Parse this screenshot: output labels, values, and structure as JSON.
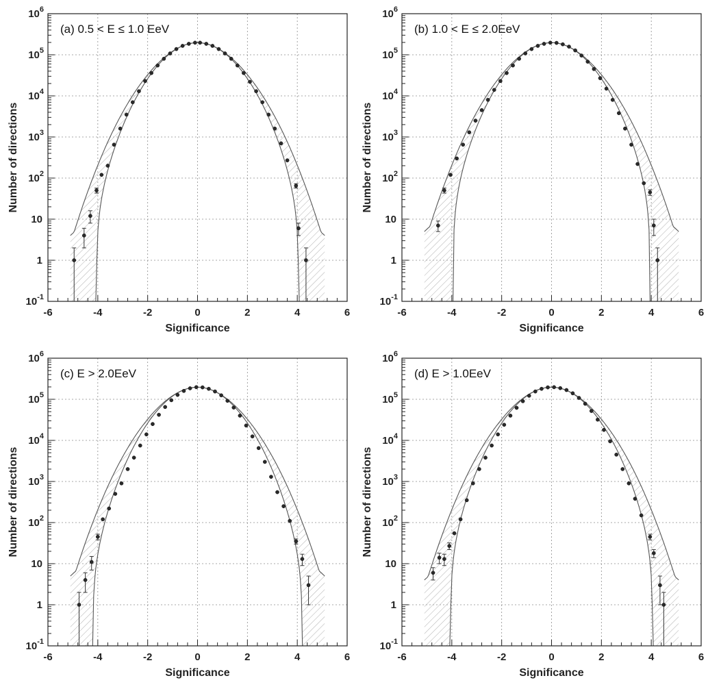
{
  "chart_data": [
    {
      "type": "scatter",
      "title": "(a) 0.5 < E ≤ 1.0 EeV",
      "xlabel": "Significance",
      "ylabel": "Number of directions",
      "xlim": [
        -6,
        6
      ],
      "ylim": [
        0.1,
        1000000
      ],
      "yscale": "log",
      "grid": true,
      "x_ticks": [
        "-6",
        "-4",
        "-2",
        "0",
        "2",
        "4",
        "6"
      ],
      "y_ticks": [
        {
          "base": "10",
          "exp": "-1"
        },
        {
          "base": "1",
          "exp": ""
        },
        {
          "base": "10",
          "exp": ""
        },
        {
          "base": "10",
          "exp": "2"
        },
        {
          "base": "10",
          "exp": "3"
        },
        {
          "base": "10",
          "exp": "4"
        },
        {
          "base": "10",
          "exp": "5"
        },
        {
          "base": "10",
          "exp": "6"
        }
      ],
      "band": {
        "upper_sigma_max": 5.1,
        "upper_min": 4,
        "lower_sigma": 4.05
      },
      "points": [
        {
          "x": -4.95,
          "y": 1,
          "lo": 0.1,
          "hi": 2
        },
        {
          "x": -4.55,
          "y": 4,
          "lo": 2,
          "hi": 6
        },
        {
          "x": -4.3,
          "y": 12,
          "lo": 8,
          "hi": 16
        },
        {
          "x": -4.05,
          "y": 50,
          "lo": 43,
          "hi": 57
        },
        {
          "x": -3.85,
          "y": 120
        },
        {
          "x": -3.6,
          "y": 200
        },
        {
          "x": -3.35,
          "y": 650
        },
        {
          "x": -3.1,
          "y": 1600
        },
        {
          "x": -2.85,
          "y": 3500
        },
        {
          "x": -2.6,
          "y": 7000
        },
        {
          "x": -2.35,
          "y": 13000
        },
        {
          "x": -2.1,
          "y": 23000
        },
        {
          "x": -1.85,
          "y": 36000
        },
        {
          "x": -1.6,
          "y": 55000
        },
        {
          "x": -1.35,
          "y": 80000
        },
        {
          "x": -1.1,
          "y": 108000
        },
        {
          "x": -0.85,
          "y": 138000
        },
        {
          "x": -0.6,
          "y": 165000
        },
        {
          "x": -0.35,
          "y": 185000
        },
        {
          "x": -0.1,
          "y": 197000
        },
        {
          "x": 0.1,
          "y": 197000
        },
        {
          "x": 0.35,
          "y": 185000
        },
        {
          "x": 0.6,
          "y": 165000
        },
        {
          "x": 0.85,
          "y": 138000
        },
        {
          "x": 1.1,
          "y": 108000
        },
        {
          "x": 1.35,
          "y": 80000
        },
        {
          "x": 1.6,
          "y": 55000
        },
        {
          "x": 1.85,
          "y": 36000
        },
        {
          "x": 2.1,
          "y": 22000
        },
        {
          "x": 2.35,
          "y": 13000
        },
        {
          "x": 2.6,
          "y": 7000
        },
        {
          "x": 2.85,
          "y": 3500
        },
        {
          "x": 3.1,
          "y": 1600
        },
        {
          "x": 3.35,
          "y": 700
        },
        {
          "x": 3.6,
          "y": 270
        },
        {
          "x": 3.95,
          "y": 65,
          "lo": 57,
          "hi": 73
        },
        {
          "x": 4.05,
          "y": 6,
          "lo": 4,
          "hi": 8
        },
        {
          "x": 4.35,
          "y": 1,
          "lo": 0.1,
          "hi": 2
        }
      ]
    },
    {
      "type": "scatter",
      "title": "(b) 1.0 < E ≤ 2.0EeV",
      "xlabel": "Significance",
      "ylabel": "Number of directions",
      "xlim": [
        -6,
        6
      ],
      "ylim": [
        0.1,
        1000000
      ],
      "yscale": "log",
      "grid": true,
      "x_ticks": [
        "-6",
        "-4",
        "-2",
        "0",
        "2",
        "4",
        "6"
      ],
      "y_ticks": [
        {
          "base": "10",
          "exp": "-1"
        },
        {
          "base": "1",
          "exp": ""
        },
        {
          "base": "10",
          "exp": ""
        },
        {
          "base": "10",
          "exp": "2"
        },
        {
          "base": "10",
          "exp": "3"
        },
        {
          "base": "10",
          "exp": "4"
        },
        {
          "base": "10",
          "exp": "5"
        },
        {
          "base": "10",
          "exp": "6"
        }
      ],
      "band": {
        "upper_sigma_max": 5.1,
        "upper_min": 5,
        "lower_sigma": 3.95
      },
      "points": [
        {
          "x": -4.55,
          "y": 7,
          "lo": 5,
          "hi": 9
        },
        {
          "x": -4.3,
          "y": 50,
          "lo": 43,
          "hi": 57
        },
        {
          "x": -4.05,
          "y": 120
        },
        {
          "x": -3.8,
          "y": 300
        },
        {
          "x": -3.55,
          "y": 650
        },
        {
          "x": -3.3,
          "y": 1300
        },
        {
          "x": -3.05,
          "y": 2500
        },
        {
          "x": -2.8,
          "y": 4500
        },
        {
          "x": -2.55,
          "y": 8000
        },
        {
          "x": -2.3,
          "y": 14000
        },
        {
          "x": -2.05,
          "y": 23000
        },
        {
          "x": -1.8,
          "y": 36000
        },
        {
          "x": -1.55,
          "y": 55000
        },
        {
          "x": -1.3,
          "y": 80000
        },
        {
          "x": -1.05,
          "y": 108000
        },
        {
          "x": -0.8,
          "y": 138000
        },
        {
          "x": -0.55,
          "y": 165000
        },
        {
          "x": -0.3,
          "y": 185000
        },
        {
          "x": -0.05,
          "y": 197000
        },
        {
          "x": 0.2,
          "y": 195000
        },
        {
          "x": 0.45,
          "y": 180000
        },
        {
          "x": 0.7,
          "y": 158000
        },
        {
          "x": 0.95,
          "y": 128000
        },
        {
          "x": 1.2,
          "y": 96000
        },
        {
          "x": 1.45,
          "y": 68000
        },
        {
          "x": 1.7,
          "y": 45000
        },
        {
          "x": 1.95,
          "y": 27000
        },
        {
          "x": 2.2,
          "y": 15000
        },
        {
          "x": 2.45,
          "y": 8000
        },
        {
          "x": 2.7,
          "y": 3800
        },
        {
          "x": 2.95,
          "y": 1600
        },
        {
          "x": 3.2,
          "y": 650
        },
        {
          "x": 3.45,
          "y": 220
        },
        {
          "x": 3.7,
          "y": 75
        },
        {
          "x": 3.95,
          "y": 45,
          "lo": 38,
          "hi": 52
        },
        {
          "x": 4.1,
          "y": 7,
          "lo": 4,
          "hi": 10
        },
        {
          "x": 4.25,
          "y": 1,
          "lo": 0.1,
          "hi": 2
        }
      ]
    },
    {
      "type": "scatter",
      "title": "(c) E > 2.0EeV",
      "xlabel": "Significance",
      "ylabel": "Number of directions",
      "xlim": [
        -6,
        6
      ],
      "ylim": [
        0.1,
        1000000
      ],
      "yscale": "log",
      "grid": true,
      "x_ticks": [
        "-6",
        "-4",
        "-2",
        "0",
        "2",
        "4",
        "6"
      ],
      "y_ticks": [
        {
          "base": "10",
          "exp": "-1"
        },
        {
          "base": "1",
          "exp": ""
        },
        {
          "base": "10",
          "exp": ""
        },
        {
          "base": "10",
          "exp": "2"
        },
        {
          "base": "10",
          "exp": "3"
        },
        {
          "base": "10",
          "exp": "4"
        },
        {
          "base": "10",
          "exp": "5"
        },
        {
          "base": "10",
          "exp": "6"
        }
      ],
      "band": {
        "upper_sigma_max": 5.1,
        "upper_min": 5,
        "lower_sigma": 4.2
      },
      "points": [
        {
          "x": -4.75,
          "y": 1,
          "lo": 0.1,
          "hi": 2
        },
        {
          "x": -4.5,
          "y": 4,
          "lo": 2,
          "hi": 6
        },
        {
          "x": -4.25,
          "y": 11,
          "lo": 7,
          "hi": 15
        },
        {
          "x": -4.0,
          "y": 45,
          "lo": 38,
          "hi": 52
        },
        {
          "x": -3.8,
          "y": 120
        },
        {
          "x": -3.55,
          "y": 220
        },
        {
          "x": -3.3,
          "y": 500
        },
        {
          "x": -3.05,
          "y": 900
        },
        {
          "x": -2.8,
          "y": 2000
        },
        {
          "x": -2.55,
          "y": 3800
        },
        {
          "x": -2.3,
          "y": 7500
        },
        {
          "x": -2.05,
          "y": 14000
        },
        {
          "x": -1.8,
          "y": 25000
        },
        {
          "x": -1.55,
          "y": 42000
        },
        {
          "x": -1.3,
          "y": 65000
        },
        {
          "x": -1.05,
          "y": 95000
        },
        {
          "x": -0.8,
          "y": 128000
        },
        {
          "x": -0.55,
          "y": 160000
        },
        {
          "x": -0.3,
          "y": 185000
        },
        {
          "x": -0.05,
          "y": 197000
        },
        {
          "x": 0.2,
          "y": 195000
        },
        {
          "x": 0.45,
          "y": 180000
        },
        {
          "x": 0.7,
          "y": 155000
        },
        {
          "x": 0.95,
          "y": 125000
        },
        {
          "x": 1.2,
          "y": 92000
        },
        {
          "x": 1.45,
          "y": 63000
        },
        {
          "x": 1.7,
          "y": 40000
        },
        {
          "x": 1.95,
          "y": 23000
        },
        {
          "x": 2.2,
          "y": 12500
        },
        {
          "x": 2.45,
          "y": 6500
        },
        {
          "x": 2.7,
          "y": 3000
        },
        {
          "x": 2.95,
          "y": 1300
        },
        {
          "x": 3.2,
          "y": 550
        },
        {
          "x": 3.45,
          "y": 250
        },
        {
          "x": 3.7,
          "y": 110
        },
        {
          "x": 3.95,
          "y": 35,
          "lo": 30,
          "hi": 40
        },
        {
          "x": 4.2,
          "y": 13,
          "lo": 9,
          "hi": 17
        },
        {
          "x": 4.45,
          "y": 3,
          "lo": 1,
          "hi": 5
        }
      ]
    },
    {
      "type": "scatter",
      "title": "(d) E > 1.0EeV",
      "xlabel": "Significance",
      "ylabel": "Number of directions",
      "xlim": [
        -6,
        6
      ],
      "ylim": [
        0.1,
        1000000
      ],
      "yscale": "log",
      "grid": true,
      "x_ticks": [
        "-6",
        "-4",
        "-2",
        "0",
        "2",
        "4",
        "6"
      ],
      "y_ticks": [
        {
          "base": "10",
          "exp": "-1"
        },
        {
          "base": "1",
          "exp": ""
        },
        {
          "base": "10",
          "exp": ""
        },
        {
          "base": "10",
          "exp": "2"
        },
        {
          "base": "10",
          "exp": "3"
        },
        {
          "base": "10",
          "exp": "4"
        },
        {
          "base": "10",
          "exp": "5"
        },
        {
          "base": "10",
          "exp": "6"
        }
      ],
      "band": {
        "upper_sigma_max": 5.1,
        "upper_min": 4,
        "lower_sigma": 4.05
      },
      "points": [
        {
          "x": -4.75,
          "y": 6,
          "lo": 4,
          "hi": 8
        },
        {
          "x": -4.5,
          "y": 14,
          "lo": 10,
          "hi": 18
        },
        {
          "x": -4.3,
          "y": 13,
          "lo": 9,
          "hi": 17
        },
        {
          "x": -4.1,
          "y": 27,
          "lo": 22,
          "hi": 32
        },
        {
          "x": -3.9,
          "y": 55
        },
        {
          "x": -3.65,
          "y": 120
        },
        {
          "x": -3.4,
          "y": 350
        },
        {
          "x": -3.15,
          "y": 900
        },
        {
          "x": -2.9,
          "y": 2000
        },
        {
          "x": -2.65,
          "y": 3800
        },
        {
          "x": -2.4,
          "y": 7500
        },
        {
          "x": -2.15,
          "y": 14000
        },
        {
          "x": -1.9,
          "y": 24000
        },
        {
          "x": -1.65,
          "y": 40000
        },
        {
          "x": -1.4,
          "y": 62000
        },
        {
          "x": -1.15,
          "y": 90000
        },
        {
          "x": -0.9,
          "y": 122000
        },
        {
          "x": -0.65,
          "y": 155000
        },
        {
          "x": -0.4,
          "y": 180000
        },
        {
          "x": -0.15,
          "y": 195000
        },
        {
          "x": 0.1,
          "y": 197000
        },
        {
          "x": 0.35,
          "y": 187000
        },
        {
          "x": 0.6,
          "y": 168000
        },
        {
          "x": 0.85,
          "y": 140000
        },
        {
          "x": 1.1,
          "y": 108000
        },
        {
          "x": 1.35,
          "y": 78000
        },
        {
          "x": 1.6,
          "y": 52000
        },
        {
          "x": 1.85,
          "y": 32000
        },
        {
          "x": 2.1,
          "y": 18000
        },
        {
          "x": 2.35,
          "y": 9500
        },
        {
          "x": 2.6,
          "y": 4500
        },
        {
          "x": 2.85,
          "y": 2000
        },
        {
          "x": 3.1,
          "y": 900
        },
        {
          "x": 3.35,
          "y": 380
        },
        {
          "x": 3.6,
          "y": 150
        },
        {
          "x": 3.95,
          "y": 45,
          "lo": 38,
          "hi": 52
        },
        {
          "x": 4.1,
          "y": 18,
          "lo": 14,
          "hi": 22
        },
        {
          "x": 4.35,
          "y": 3,
          "lo": 1,
          "hi": 5
        },
        {
          "x": 4.5,
          "y": 1,
          "lo": 0.1,
          "hi": 2
        }
      ]
    }
  ]
}
